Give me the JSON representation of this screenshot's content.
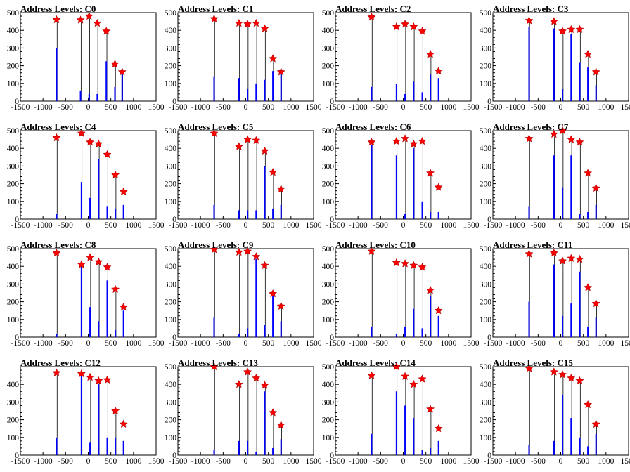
{
  "colors": {
    "pulse": "#0000ff",
    "outline": "#000000",
    "marker": "#ff0000",
    "background": "#ffffff"
  },
  "chart_data": [
    {
      "type": "bar",
      "title": "Address Levels: C0",
      "xlim": [
        -1500,
        1500
      ],
      "ylim": [
        0,
        500
      ],
      "xticks": [
        -1500,
        -1000,
        -500,
        0,
        500,
        1000,
        1500
      ],
      "yticks": [
        0,
        100,
        200,
        300,
        400,
        500
      ],
      "peaks": [
        {
          "x": -700,
          "y": 460,
          "fill": 300
        },
        {
          "x": -170,
          "y": 458,
          "fill": 60
        },
        {
          "x": 20,
          "y": 480,
          "fill": 40
        },
        {
          "x": 200,
          "y": 440,
          "fill": 40
        },
        {
          "x": 400,
          "y": 395,
          "fill": 225
        },
        {
          "x": 590,
          "y": 210,
          "fill": 80
        },
        {
          "x": 750,
          "y": 165,
          "fill": 150
        }
      ]
    },
    {
      "type": "bar",
      "title": "Address Levels: C1",
      "xlim": [
        -1500,
        1500
      ],
      "ylim": [
        0,
        500
      ],
      "xticks": [
        -1500,
        -1000,
        -500,
        0,
        500,
        1000,
        1500
      ],
      "yticks": [
        0,
        100,
        200,
        300,
        400,
        500
      ],
      "peaks": [
        {
          "x": -700,
          "y": 465,
          "fill": 140
        },
        {
          "x": -150,
          "y": 440,
          "fill": 130
        },
        {
          "x": 40,
          "y": 435,
          "fill": 70
        },
        {
          "x": 230,
          "y": 440,
          "fill": 100
        },
        {
          "x": 420,
          "y": 410,
          "fill": 120
        },
        {
          "x": 600,
          "y": 240,
          "fill": 170
        },
        {
          "x": 780,
          "y": 165,
          "fill": 150
        }
      ]
    },
    {
      "type": "bar",
      "title": "Address Levels: C2",
      "xlim": [
        -1500,
        1500
      ],
      "ylim": [
        0,
        500
      ],
      "xticks": [
        -1500,
        -1000,
        -500,
        0,
        500,
        1000,
        1500
      ],
      "yticks": [
        0,
        100,
        200,
        300,
        400,
        500
      ],
      "peaks": [
        {
          "x": -700,
          "y": 475,
          "fill": 80
        },
        {
          "x": -150,
          "y": 420,
          "fill": 95
        },
        {
          "x": 40,
          "y": 435,
          "fill": 40
        },
        {
          "x": 230,
          "y": 420,
          "fill": 110
        },
        {
          "x": 420,
          "y": 395,
          "fill": 50
        },
        {
          "x": 600,
          "y": 265,
          "fill": 150
        },
        {
          "x": 780,
          "y": 170,
          "fill": 130
        }
      ]
    },
    {
      "type": "bar",
      "title": "Address Levels: C3",
      "xlim": [
        -1500,
        1500
      ],
      "ylim": [
        0,
        500
      ],
      "xticks": [
        -1500,
        -1000,
        -500,
        0,
        500,
        1000,
        1500
      ],
      "yticks": [
        0,
        100,
        200,
        300,
        400,
        500
      ],
      "peaks": [
        {
          "x": -700,
          "y": 455,
          "fill": 420
        },
        {
          "x": -150,
          "y": 450,
          "fill": 410
        },
        {
          "x": 40,
          "y": 395,
          "fill": 70
        },
        {
          "x": 230,
          "y": 405,
          "fill": 380
        },
        {
          "x": 420,
          "y": 405,
          "fill": 220
        },
        {
          "x": 600,
          "y": 265,
          "fill": 190
        },
        {
          "x": 780,
          "y": 165,
          "fill": 90
        }
      ]
    },
    {
      "type": "bar",
      "title": "Address Levels: C4",
      "xlim": [
        -1500,
        1500
      ],
      "ylim": [
        0,
        500
      ],
      "xticks": [
        -1500,
        -1000,
        -500,
        0,
        500,
        1000,
        1500
      ],
      "yticks": [
        0,
        100,
        200,
        300,
        400,
        500
      ],
      "peaks": [
        {
          "x": -700,
          "y": 460,
          "fill": 30
        },
        {
          "x": -150,
          "y": 485,
          "fill": 210
        },
        {
          "x": 40,
          "y": 435,
          "fill": 120
        },
        {
          "x": 230,
          "y": 425,
          "fill": 340
        },
        {
          "x": 420,
          "y": 365,
          "fill": 70
        },
        {
          "x": 600,
          "y": 250,
          "fill": 60
        },
        {
          "x": 780,
          "y": 155,
          "fill": 80
        }
      ]
    },
    {
      "type": "bar",
      "title": "Address Levels: C5",
      "xlim": [
        -1500,
        1500
      ],
      "ylim": [
        0,
        500
      ],
      "xticks": [
        -1500,
        -1000,
        -500,
        0,
        500,
        1000,
        1500
      ],
      "yticks": [
        0,
        100,
        200,
        300,
        400,
        500
      ],
      "peaks": [
        {
          "x": -700,
          "y": 485,
          "fill": 80
        },
        {
          "x": -150,
          "y": 410,
          "fill": 50
        },
        {
          "x": 40,
          "y": 450,
          "fill": 50
        },
        {
          "x": 230,
          "y": 445,
          "fill": 50
        },
        {
          "x": 420,
          "y": 385,
          "fill": 300
        },
        {
          "x": 600,
          "y": 265,
          "fill": 60
        },
        {
          "x": 780,
          "y": 170,
          "fill": 80
        }
      ]
    },
    {
      "type": "bar",
      "title": "Address Levels: C6",
      "xlim": [
        -1500,
        1500
      ],
      "ylim": [
        0,
        500
      ],
      "xticks": [
        -1500,
        -1000,
        -500,
        0,
        500,
        1000,
        1500
      ],
      "yticks": [
        0,
        100,
        200,
        300,
        400,
        500
      ],
      "peaks": [
        {
          "x": -700,
          "y": 435,
          "fill": 420
        },
        {
          "x": -150,
          "y": 440,
          "fill": 360
        },
        {
          "x": 40,
          "y": 455,
          "fill": 30
        },
        {
          "x": 230,
          "y": 425,
          "fill": 400
        },
        {
          "x": 420,
          "y": 440,
          "fill": 100
        },
        {
          "x": 600,
          "y": 260,
          "fill": 40
        },
        {
          "x": 780,
          "y": 180,
          "fill": 40
        }
      ]
    },
    {
      "type": "bar",
      "title": "Address Levels: C7",
      "xlim": [
        -1500,
        1500
      ],
      "ylim": [
        0,
        500
      ],
      "xticks": [
        -1500,
        -1000,
        -500,
        0,
        500,
        1000,
        1500
      ],
      "yticks": [
        0,
        100,
        200,
        300,
        400,
        500
      ],
      "peaks": [
        {
          "x": -700,
          "y": 455,
          "fill": 70
        },
        {
          "x": -150,
          "y": 480,
          "fill": 360
        },
        {
          "x": 40,
          "y": 500,
          "fill": 180
        },
        {
          "x": 230,
          "y": 450,
          "fill": 360
        },
        {
          "x": 420,
          "y": 435,
          "fill": 30
        },
        {
          "x": 600,
          "y": 260,
          "fill": 40
        },
        {
          "x": 780,
          "y": 175,
          "fill": 80
        }
      ]
    },
    {
      "type": "bar",
      "title": "Address Levels: C8",
      "xlim": [
        -1500,
        1500
      ],
      "ylim": [
        0,
        500
      ],
      "xticks": [
        -1500,
        -1000,
        -500,
        0,
        500,
        1000,
        1500
      ],
      "yticks": [
        0,
        100,
        200,
        300,
        400,
        500
      ],
      "peaks": [
        {
          "x": -700,
          "y": 475,
          "fill": 20
        },
        {
          "x": -150,
          "y": 410,
          "fill": 400
        },
        {
          "x": 40,
          "y": 450,
          "fill": 170
        },
        {
          "x": 230,
          "y": 425,
          "fill": 90
        },
        {
          "x": 420,
          "y": 395,
          "fill": 320
        },
        {
          "x": 600,
          "y": 270,
          "fill": 40
        },
        {
          "x": 780,
          "y": 170,
          "fill": 150
        }
      ]
    },
    {
      "type": "bar",
      "title": "Address Levels: C9",
      "xlim": [
        -1500,
        1500
      ],
      "ylim": [
        0,
        500
      ],
      "xticks": [
        -1500,
        -1000,
        -500,
        0,
        500,
        1000,
        1500
      ],
      "yticks": [
        0,
        100,
        200,
        300,
        400,
        500
      ],
      "peaks": [
        {
          "x": -700,
          "y": 495,
          "fill": 110
        },
        {
          "x": -150,
          "y": 480,
          "fill": 20
        },
        {
          "x": 40,
          "y": 485,
          "fill": 50
        },
        {
          "x": 230,
          "y": 455,
          "fill": 440
        },
        {
          "x": 420,
          "y": 405,
          "fill": 70
        },
        {
          "x": 600,
          "y": 245,
          "fill": 230
        },
        {
          "x": 780,
          "y": 175,
          "fill": 90
        }
      ]
    },
    {
      "type": "bar",
      "title": "Address Levels: C10",
      "xlim": [
        -1500,
        1500
      ],
      "ylim": [
        0,
        500
      ],
      "xticks": [
        -1500,
        -1000,
        -500,
        0,
        500,
        1000,
        1500
      ],
      "yticks": [
        0,
        100,
        200,
        300,
        400,
        500
      ],
      "peaks": [
        {
          "x": -700,
          "y": 485,
          "fill": 60
        },
        {
          "x": -150,
          "y": 420,
          "fill": 20
        },
        {
          "x": 40,
          "y": 415,
          "fill": 60
        },
        {
          "x": 230,
          "y": 405,
          "fill": 160
        },
        {
          "x": 420,
          "y": 395,
          "fill": 50
        },
        {
          "x": 600,
          "y": 265,
          "fill": 230
        },
        {
          "x": 780,
          "y": 150,
          "fill": 120
        }
      ]
    },
    {
      "type": "bar",
      "title": "Address Levels: C11",
      "xlim": [
        -1500,
        1500
      ],
      "ylim": [
        0,
        500
      ],
      "xticks": [
        -1500,
        -1000,
        -500,
        0,
        500,
        1000,
        1500
      ],
      "yticks": [
        0,
        100,
        200,
        300,
        400,
        500
      ],
      "peaks": [
        {
          "x": -700,
          "y": 470,
          "fill": 200
        },
        {
          "x": -150,
          "y": 475,
          "fill": 410
        },
        {
          "x": 40,
          "y": 430,
          "fill": 120
        },
        {
          "x": 230,
          "y": 445,
          "fill": 190
        },
        {
          "x": 420,
          "y": 440,
          "fill": 370
        },
        {
          "x": 600,
          "y": 280,
          "fill": 60
        },
        {
          "x": 780,
          "y": 190,
          "fill": 110
        }
      ]
    },
    {
      "type": "bar",
      "title": "Address Levels: C12",
      "xlim": [
        -1500,
        1500
      ],
      "ylim": [
        0,
        500
      ],
      "xticks": [
        -1500,
        -1000,
        -500,
        0,
        500,
        1000,
        1500
      ],
      "yticks": [
        0,
        100,
        200,
        300,
        400
      ],
      "peaks": [
        {
          "x": -700,
          "y": 465,
          "fill": 100
        },
        {
          "x": -150,
          "y": 460,
          "fill": 460
        },
        {
          "x": 40,
          "y": 440,
          "fill": 70
        },
        {
          "x": 230,
          "y": 420,
          "fill": 400
        },
        {
          "x": 420,
          "y": 425,
          "fill": 100
        },
        {
          "x": 600,
          "y": 250,
          "fill": 100
        },
        {
          "x": 780,
          "y": 175,
          "fill": 80
        }
      ]
    },
    {
      "type": "bar",
      "title": "Address Levels: C13",
      "xlim": [
        -1500,
        1500
      ],
      "ylim": [
        0,
        500
      ],
      "xticks": [
        -1500,
        -1000,
        -500,
        0,
        500,
        1000,
        1500
      ],
      "yticks": [
        0,
        100,
        200,
        300,
        400,
        500
      ],
      "peaks": [
        {
          "x": -700,
          "y": 500,
          "fill": 30
        },
        {
          "x": -150,
          "y": 400,
          "fill": 80
        },
        {
          "x": 40,
          "y": 470,
          "fill": 80
        },
        {
          "x": 230,
          "y": 435,
          "fill": 20
        },
        {
          "x": 420,
          "y": 395,
          "fill": 360
        },
        {
          "x": 600,
          "y": 240,
          "fill": 40
        },
        {
          "x": 780,
          "y": 170,
          "fill": 90
        }
      ]
    },
    {
      "type": "bar",
      "title": "Address Levels: C14",
      "xlim": [
        -1500,
        1500
      ],
      "ylim": [
        0,
        500
      ],
      "xticks": [
        -1500,
        -1000,
        -500,
        0,
        500,
        1000,
        1500
      ],
      "yticks": [
        0,
        100,
        200,
        300,
        400,
        500
      ],
      "peaks": [
        {
          "x": -700,
          "y": 450,
          "fill": 120
        },
        {
          "x": -150,
          "y": 500,
          "fill": 360
        },
        {
          "x": 40,
          "y": 445,
          "fill": 280
        },
        {
          "x": 230,
          "y": 400,
          "fill": 210
        },
        {
          "x": 420,
          "y": 430,
          "fill": 30
        },
        {
          "x": 600,
          "y": 260,
          "fill": 40
        },
        {
          "x": 780,
          "y": 150,
          "fill": 80
        }
      ]
    },
    {
      "type": "bar",
      "title": "Address Levels: C15",
      "xlim": [
        -1500,
        1500
      ],
      "ylim": [
        0,
        500
      ],
      "xticks": [
        -1500,
        -1000,
        -500,
        0,
        500,
        1000,
        1500
      ],
      "yticks": [
        0,
        100,
        200,
        300,
        400,
        500
      ],
      "peaks": [
        {
          "x": -700,
          "y": 490,
          "fill": 60
        },
        {
          "x": -150,
          "y": 470,
          "fill": 80
        },
        {
          "x": 40,
          "y": 455,
          "fill": 340
        },
        {
          "x": 230,
          "y": 435,
          "fill": 210
        },
        {
          "x": 420,
          "y": 420,
          "fill": 100
        },
        {
          "x": 600,
          "y": 285,
          "fill": 50
        },
        {
          "x": 780,
          "y": 175,
          "fill": 120
        }
      ]
    }
  ]
}
